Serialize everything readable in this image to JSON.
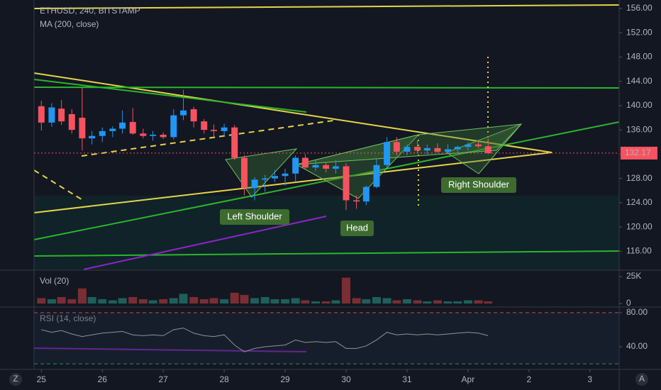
{
  "chart_data": [
    {
      "type": "candlestick",
      "title": "ETHUSD, 240, BITSTAMP",
      "subtitle": "MA (200, close)",
      "up_color": "#2196f3",
      "down_color": "#f7525f",
      "x": [
        25,
        25.17,
        25.33,
        25.5,
        25.67,
        25.83,
        26,
        26.17,
        26.33,
        26.5,
        26.67,
        26.83,
        27,
        27.17,
        27.33,
        27.5,
        27.67,
        27.83,
        28,
        28.17,
        28.33,
        28.5,
        28.67,
        28.83,
        29,
        29.17,
        29.33,
        29.5,
        29.67,
        29.83,
        30,
        30.17,
        30.33,
        30.5,
        30.67,
        30.83,
        31,
        31.17,
        31.33,
        31.5,
        31.67,
        31.83,
        32,
        32.17,
        32.33
      ],
      "open": [
        139.9,
        137.2,
        139.5,
        138.6,
        138.0,
        134.6,
        135.0,
        135.8,
        136.2,
        137.3,
        135.4,
        135.0,
        135.2,
        134.8,
        138.4,
        139.4,
        137.4,
        136.0,
        135.8,
        136.4,
        131.4,
        126.4,
        127.8,
        128.0,
        128.4,
        128.8,
        131.4,
        129.8,
        130.2,
        129.6,
        130.0,
        124.4,
        124.2,
        126.6,
        130.2,
        134.0,
        132.4,
        133.2,
        132.6,
        133.0,
        132.4,
        132.8,
        133.2,
        133.6,
        133.3
      ],
      "high": [
        140.8,
        140.4,
        140.9,
        139.4,
        143.0,
        135.8,
        136.4,
        136.6,
        139.2,
        139.6,
        136.2,
        135.8,
        135.6,
        139.4,
        142.6,
        139.8,
        137.8,
        136.9,
        137.0,
        136.8,
        131.8,
        128.2,
        128.6,
        129.4,
        129.6,
        131.8,
        132.0,
        131.0,
        130.6,
        131.0,
        130.5,
        125.2,
        126.8,
        131.2,
        134.8,
        134.8,
        133.6,
        134.2,
        133.6,
        133.8,
        133.6,
        133.4,
        134.0,
        134.2,
        134.6
      ],
      "low": [
        135.9,
        136.5,
        136.8,
        135.4,
        132.6,
        133.6,
        134.0,
        134.8,
        135.4,
        135.2,
        134.6,
        134.2,
        134.5,
        134.4,
        137.6,
        136.4,
        135.4,
        134.8,
        135.0,
        131.0,
        125.2,
        124.4,
        125.8,
        127.4,
        126.8,
        127.4,
        129.6,
        129.2,
        129.0,
        128.8,
        122.8,
        123.0,
        123.6,
        126.4,
        129.8,
        131.8,
        131.8,
        132.2,
        132.0,
        132.2,
        132.0,
        132.0,
        132.6,
        133.0,
        132.0
      ],
      "close": [
        137.2,
        139.7,
        137.4,
        136.0,
        134.6,
        135.0,
        135.8,
        136.2,
        137.2,
        135.4,
        135.0,
        135.2,
        134.8,
        138.4,
        139.2,
        137.4,
        136.0,
        135.8,
        136.4,
        131.4,
        126.4,
        127.8,
        128.0,
        128.4,
        128.8,
        131.4,
        129.8,
        130.2,
        129.6,
        130.0,
        124.4,
        124.2,
        126.6,
        130.2,
        134.0,
        132.4,
        133.2,
        132.6,
        133.0,
        132.4,
        132.8,
        133.2,
        133.6,
        133.3,
        132.17
      ],
      "last_price": 132.17,
      "xlim": [
        24.88,
        34.48
      ],
      "xticks": [
        25,
        26,
        27,
        28,
        29,
        30,
        31,
        {
          "value": 32,
          "label": "Apr"
        },
        {
          "value": 33,
          "label": "2"
        },
        {
          "value": 34,
          "label": "3"
        }
      ],
      "ylim": [
        113,
        157.4
      ],
      "yticks": [
        {
          "value": 116,
          "label": "116.00"
        },
        {
          "value": 120,
          "label": "120.00"
        },
        {
          "value": 124,
          "label": "124.00"
        },
        {
          "value": 128,
          "label": "128.00"
        },
        {
          "value": 132,
          "label": "132.00"
        },
        {
          "value": 136,
          "label": "136.00"
        },
        {
          "value": 140,
          "label": "140.00"
        },
        {
          "value": 144,
          "label": "144.00"
        },
        {
          "value": 148,
          "label": "148.00"
        },
        {
          "value": 152,
          "label": "152.00"
        },
        {
          "value": 156,
          "label": "156.00"
        }
      ],
      "annotations": [
        "Left Shoulder",
        "Head",
        "Right Shoulder"
      ]
    },
    {
      "type": "volume",
      "title": "Vol (20)",
      "up_color": "#1f5f5b",
      "down_color": "#7a2e33",
      "values": [
        5,
        4,
        6,
        4,
        14,
        6,
        4,
        3,
        5,
        6,
        4,
        3,
        4,
        5,
        9,
        6,
        4,
        5,
        4,
        10,
        8,
        5,
        6,
        4,
        4,
        5,
        3,
        2,
        2,
        3,
        24,
        5,
        4,
        6,
        5,
        3,
        4,
        3,
        2,
        3,
        2,
        2,
        3,
        3,
        2
      ],
      "ylim": [
        -2.6,
        30.3
      ],
      "yticks": [
        0,
        {
          "value": 25,
          "label": "25K"
        }
      ]
    },
    {
      "type": "rsi",
      "title": "RSI (14, close)",
      "color": "#8f9196",
      "values": [
        60,
        57,
        59,
        55,
        52,
        54,
        56,
        57,
        58,
        54,
        53,
        54,
        53,
        60,
        62,
        56,
        53,
        52,
        54,
        42,
        34,
        38,
        40,
        41,
        42,
        48,
        45,
        46,
        45,
        46,
        38,
        38,
        41,
        48,
        57,
        54,
        55,
        54,
        55,
        54,
        55,
        56,
        57,
        56,
        53
      ],
      "bands": [
        80,
        20
      ],
      "ylim": [
        14.2,
        85.8
      ],
      "yticks": [
        {
          "value": 40,
          "label": "40.00"
        },
        {
          "value": 80,
          "label": "80.00"
        }
      ]
    }
  ],
  "ui": {
    "left_button": "Z",
    "right_button": "A"
  }
}
